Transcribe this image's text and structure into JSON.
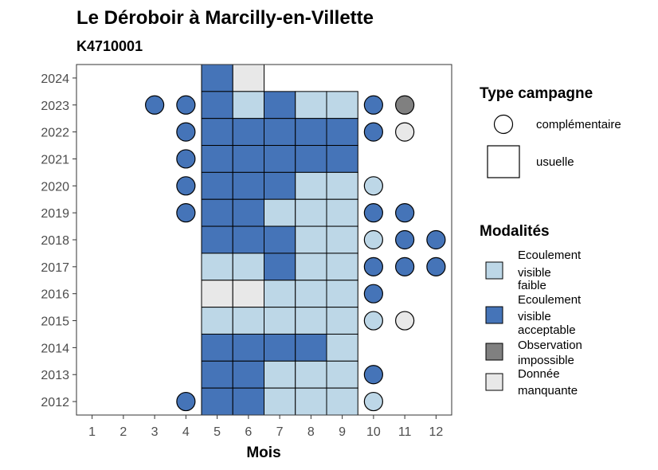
{
  "chart_data": {
    "type": "heatmap",
    "title": "Le Déroboir à Marcilly-en-Villette",
    "subtitle": "K4710001",
    "xlabel": "Mois",
    "ylabel": "",
    "x_ticks": [
      1,
      2,
      3,
      4,
      5,
      6,
      7,
      8,
      9,
      10,
      11,
      12
    ],
    "y_ticks": [
      2012,
      2013,
      2014,
      2015,
      2016,
      2017,
      2018,
      2019,
      2020,
      2021,
      2022,
      2023,
      2024
    ],
    "xlim": [
      0.5,
      12.5
    ],
    "ylim": [
      2011.5,
      2024.5
    ],
    "grid": false,
    "legend": {
      "placement": "right",
      "type_title": "Type campagne",
      "type_items": [
        {
          "key": "complementaire",
          "label": "complémentaire",
          "shape": "circle"
        },
        {
          "key": "usuelle",
          "label": "usuelle",
          "shape": "square"
        }
      ],
      "modalites_title": "Modalités",
      "modalites_items": [
        {
          "key": "faible",
          "label_lines": [
            "Ecoulement",
            "visible",
            "faible"
          ],
          "color": "#bdd7e7"
        },
        {
          "key": "acceptable",
          "label_lines": [
            "Ecoulement",
            "visible",
            "acceptable"
          ],
          "color": "#4574b8"
        },
        {
          "key": "impossible",
          "label_lines": [
            "Observation",
            "impossible"
          ],
          "color": "#808080"
        },
        {
          "key": "manquante",
          "label_lines": [
            "Donnée",
            "manquante"
          ],
          "color": "#e8e8e8"
        }
      ]
    },
    "colors": {
      "faible": "#bdd7e7",
      "acceptable": "#4574b8",
      "impossible": "#808080",
      "manquante": "#e8e8e8"
    },
    "points": [
      {
        "month": 5,
        "year": 2024,
        "type": "usuelle",
        "modalite": "acceptable"
      },
      {
        "month": 6,
        "year": 2024,
        "type": "usuelle",
        "modalite": "manquante"
      },
      {
        "month": 3,
        "year": 2023,
        "type": "complementaire",
        "modalite": "acceptable"
      },
      {
        "month": 4,
        "year": 2023,
        "type": "complementaire",
        "modalite": "acceptable"
      },
      {
        "month": 5,
        "year": 2023,
        "type": "usuelle",
        "modalite": "acceptable"
      },
      {
        "month": 6,
        "year": 2023,
        "type": "usuelle",
        "modalite": "faible"
      },
      {
        "month": 7,
        "year": 2023,
        "type": "usuelle",
        "modalite": "acceptable"
      },
      {
        "month": 8,
        "year": 2023,
        "type": "usuelle",
        "modalite": "faible"
      },
      {
        "month": 9,
        "year": 2023,
        "type": "usuelle",
        "modalite": "faible"
      },
      {
        "month": 10,
        "year": 2023,
        "type": "complementaire",
        "modalite": "acceptable"
      },
      {
        "month": 11,
        "year": 2023,
        "type": "complementaire",
        "modalite": "impossible"
      },
      {
        "month": 4,
        "year": 2022,
        "type": "complementaire",
        "modalite": "acceptable"
      },
      {
        "month": 5,
        "year": 2022,
        "type": "usuelle",
        "modalite": "acceptable"
      },
      {
        "month": 6,
        "year": 2022,
        "type": "usuelle",
        "modalite": "acceptable"
      },
      {
        "month": 7,
        "year": 2022,
        "type": "usuelle",
        "modalite": "acceptable"
      },
      {
        "month": 8,
        "year": 2022,
        "type": "usuelle",
        "modalite": "acceptable"
      },
      {
        "month": 9,
        "year": 2022,
        "type": "usuelle",
        "modalite": "acceptable"
      },
      {
        "month": 10,
        "year": 2022,
        "type": "complementaire",
        "modalite": "acceptable"
      },
      {
        "month": 11,
        "year": 2022,
        "type": "complementaire",
        "modalite": "manquante"
      },
      {
        "month": 4,
        "year": 2021,
        "type": "complementaire",
        "modalite": "acceptable"
      },
      {
        "month": 5,
        "year": 2021,
        "type": "usuelle",
        "modalite": "acceptable"
      },
      {
        "month": 6,
        "year": 2021,
        "type": "usuelle",
        "modalite": "acceptable"
      },
      {
        "month": 7,
        "year": 2021,
        "type": "usuelle",
        "modalite": "acceptable"
      },
      {
        "month": 8,
        "year": 2021,
        "type": "usuelle",
        "modalite": "acceptable"
      },
      {
        "month": 9,
        "year": 2021,
        "type": "usuelle",
        "modalite": "acceptable"
      },
      {
        "month": 4,
        "year": 2020,
        "type": "complementaire",
        "modalite": "acceptable"
      },
      {
        "month": 5,
        "year": 2020,
        "type": "usuelle",
        "modalite": "acceptable"
      },
      {
        "month": 6,
        "year": 2020,
        "type": "usuelle",
        "modalite": "acceptable"
      },
      {
        "month": 7,
        "year": 2020,
        "type": "usuelle",
        "modalite": "acceptable"
      },
      {
        "month": 8,
        "year": 2020,
        "type": "usuelle",
        "modalite": "faible"
      },
      {
        "month": 9,
        "year": 2020,
        "type": "usuelle",
        "modalite": "faible"
      },
      {
        "month": 10,
        "year": 2020,
        "type": "complementaire",
        "modalite": "faible"
      },
      {
        "month": 4,
        "year": 2019,
        "type": "complementaire",
        "modalite": "acceptable"
      },
      {
        "month": 5,
        "year": 2019,
        "type": "usuelle",
        "modalite": "acceptable"
      },
      {
        "month": 6,
        "year": 2019,
        "type": "usuelle",
        "modalite": "acceptable"
      },
      {
        "month": 7,
        "year": 2019,
        "type": "usuelle",
        "modalite": "faible"
      },
      {
        "month": 8,
        "year": 2019,
        "type": "usuelle",
        "modalite": "faible"
      },
      {
        "month": 9,
        "year": 2019,
        "type": "usuelle",
        "modalite": "faible"
      },
      {
        "month": 10,
        "year": 2019,
        "type": "complementaire",
        "modalite": "acceptable"
      },
      {
        "month": 11,
        "year": 2019,
        "type": "complementaire",
        "modalite": "acceptable"
      },
      {
        "month": 5,
        "year": 2018,
        "type": "usuelle",
        "modalite": "acceptable"
      },
      {
        "month": 6,
        "year": 2018,
        "type": "usuelle",
        "modalite": "acceptable"
      },
      {
        "month": 7,
        "year": 2018,
        "type": "usuelle",
        "modalite": "acceptable"
      },
      {
        "month": 8,
        "year": 2018,
        "type": "usuelle",
        "modalite": "faible"
      },
      {
        "month": 9,
        "year": 2018,
        "type": "usuelle",
        "modalite": "faible"
      },
      {
        "month": 10,
        "year": 2018,
        "type": "complementaire",
        "modalite": "faible"
      },
      {
        "month": 11,
        "year": 2018,
        "type": "complementaire",
        "modalite": "acceptable"
      },
      {
        "month": 12,
        "year": 2018,
        "type": "complementaire",
        "modalite": "acceptable"
      },
      {
        "month": 5,
        "year": 2017,
        "type": "usuelle",
        "modalite": "faible"
      },
      {
        "month": 6,
        "year": 2017,
        "type": "usuelle",
        "modalite": "faible"
      },
      {
        "month": 7,
        "year": 2017,
        "type": "usuelle",
        "modalite": "acceptable"
      },
      {
        "month": 8,
        "year": 2017,
        "type": "usuelle",
        "modalite": "faible"
      },
      {
        "month": 9,
        "year": 2017,
        "type": "usuelle",
        "modalite": "faible"
      },
      {
        "month": 10,
        "year": 2017,
        "type": "complementaire",
        "modalite": "acceptable"
      },
      {
        "month": 11,
        "year": 2017,
        "type": "complementaire",
        "modalite": "acceptable"
      },
      {
        "month": 12,
        "year": 2017,
        "type": "complementaire",
        "modalite": "acceptable"
      },
      {
        "month": 5,
        "year": 2016,
        "type": "usuelle",
        "modalite": "manquante"
      },
      {
        "month": 6,
        "year": 2016,
        "type": "usuelle",
        "modalite": "manquante"
      },
      {
        "month": 7,
        "year": 2016,
        "type": "usuelle",
        "modalite": "faible"
      },
      {
        "month": 8,
        "year": 2016,
        "type": "usuelle",
        "modalite": "faible"
      },
      {
        "month": 9,
        "year": 2016,
        "type": "usuelle",
        "modalite": "faible"
      },
      {
        "month": 10,
        "year": 2016,
        "type": "complementaire",
        "modalite": "acceptable"
      },
      {
        "month": 5,
        "year": 2015,
        "type": "usuelle",
        "modalite": "faible"
      },
      {
        "month": 6,
        "year": 2015,
        "type": "usuelle",
        "modalite": "faible"
      },
      {
        "month": 7,
        "year": 2015,
        "type": "usuelle",
        "modalite": "faible"
      },
      {
        "month": 8,
        "year": 2015,
        "type": "usuelle",
        "modalite": "faible"
      },
      {
        "month": 9,
        "year": 2015,
        "type": "usuelle",
        "modalite": "faible"
      },
      {
        "month": 10,
        "year": 2015,
        "type": "complementaire",
        "modalite": "faible"
      },
      {
        "month": 11,
        "year": 2015,
        "type": "complementaire",
        "modalite": "manquante"
      },
      {
        "month": 5,
        "year": 2014,
        "type": "usuelle",
        "modalite": "acceptable"
      },
      {
        "month": 6,
        "year": 2014,
        "type": "usuelle",
        "modalite": "acceptable"
      },
      {
        "month": 7,
        "year": 2014,
        "type": "usuelle",
        "modalite": "acceptable"
      },
      {
        "month": 8,
        "year": 2014,
        "type": "usuelle",
        "modalite": "acceptable"
      },
      {
        "month": 9,
        "year": 2014,
        "type": "usuelle",
        "modalite": "faible"
      },
      {
        "month": 5,
        "year": 2013,
        "type": "usuelle",
        "modalite": "acceptable"
      },
      {
        "month": 6,
        "year": 2013,
        "type": "usuelle",
        "modalite": "acceptable"
      },
      {
        "month": 7,
        "year": 2013,
        "type": "usuelle",
        "modalite": "faible"
      },
      {
        "month": 8,
        "year": 2013,
        "type": "usuelle",
        "modalite": "faible"
      },
      {
        "month": 9,
        "year": 2013,
        "type": "usuelle",
        "modalite": "faible"
      },
      {
        "month": 10,
        "year": 2013,
        "type": "complementaire",
        "modalite": "acceptable"
      },
      {
        "month": 4,
        "year": 2012,
        "type": "complementaire",
        "modalite": "acceptable"
      },
      {
        "month": 5,
        "year": 2012,
        "type": "usuelle",
        "modalite": "acceptable"
      },
      {
        "month": 6,
        "year": 2012,
        "type": "usuelle",
        "modalite": "acceptable"
      },
      {
        "month": 7,
        "year": 2012,
        "type": "usuelle",
        "modalite": "faible"
      },
      {
        "month": 8,
        "year": 2012,
        "type": "usuelle",
        "modalite": "faible"
      },
      {
        "month": 9,
        "year": 2012,
        "type": "usuelle",
        "modalite": "faible"
      },
      {
        "month": 10,
        "year": 2012,
        "type": "complementaire",
        "modalite": "faible"
      }
    ]
  }
}
